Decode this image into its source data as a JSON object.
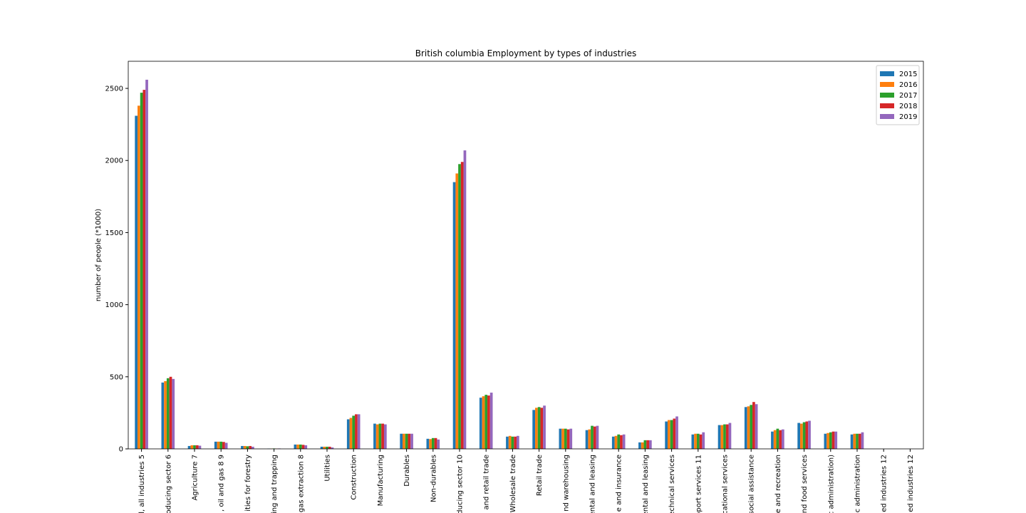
{
  "chart_data": {
    "type": "bar",
    "title": "British columbia Employment by types of industries",
    "ylabel": "number of people (*1000)",
    "categories": [
      "l, all industries 5",
      "oducing sector 6",
      "Agriculture 7",
      ", oil and gas 8 9",
      "ities for forestry",
      "ing and trapping",
      "gas extraction 8",
      "Utilities",
      "Construction",
      "Manufacturing",
      "Durables",
      "Non-durables",
      "oducing sector 10",
      "and retail trade",
      "Wholesale trade",
      "Retail trade",
      "nd warehousing",
      "ental and leasing",
      "e and insurance",
      "ental and leasing",
      "echnical services",
      "pport services 11",
      "cational services",
      "social assistance",
      "e and recreation",
      "nd food services",
      "c administration)",
      "c administration",
      "ed industries 12",
      "ed industries 12"
    ],
    "series": [
      {
        "name": "2015",
        "color": "#1f77b4",
        "values": [
          2310,
          460,
          20,
          50,
          20,
          2,
          30,
          15,
          205,
          175,
          105,
          70,
          1850,
          355,
          85,
          270,
          140,
          130,
          85,
          45,
          190,
          100,
          165,
          290,
          120,
          180,
          105,
          100,
          null,
          null
        ]
      },
      {
        "name": "2016",
        "color": "#ff7f0e",
        "values": [
          2380,
          470,
          25,
          50,
          20,
          2,
          30,
          15,
          215,
          170,
          105,
          68,
          1910,
          365,
          90,
          285,
          140,
          135,
          90,
          45,
          200,
          105,
          165,
          295,
          130,
          175,
          110,
          105,
          null,
          null
        ]
      },
      {
        "name": "2017",
        "color": "#2ca02c",
        "values": [
          2470,
          490,
          25,
          50,
          18,
          3,
          30,
          15,
          230,
          175,
          105,
          75,
          1975,
          375,
          85,
          290,
          140,
          160,
          100,
          60,
          200,
          105,
          170,
          305,
          140,
          185,
          115,
          105,
          null,
          null
        ]
      },
      {
        "name": "2018",
        "color": "#d62728",
        "values": [
          2490,
          500,
          25,
          48,
          20,
          2,
          28,
          15,
          240,
          175,
          105,
          75,
          1990,
          370,
          85,
          285,
          135,
          155,
          95,
          60,
          210,
          100,
          170,
          325,
          130,
          190,
          120,
          105,
          null,
          null
        ]
      },
      {
        "name": "2019",
        "color": "#9467bd",
        "values": [
          2560,
          485,
          22,
          42,
          15,
          3,
          25,
          10,
          240,
          170,
          105,
          65,
          2070,
          390,
          90,
          300,
          140,
          160,
          100,
          60,
          225,
          115,
          180,
          310,
          135,
          195,
          120,
          115,
          null,
          null
        ]
      }
    ],
    "ylim": [
      0,
      2688
    ],
    "yticks": [
      0,
      500,
      1000,
      1500,
      2000,
      2500
    ],
    "legend": "upper right"
  }
}
